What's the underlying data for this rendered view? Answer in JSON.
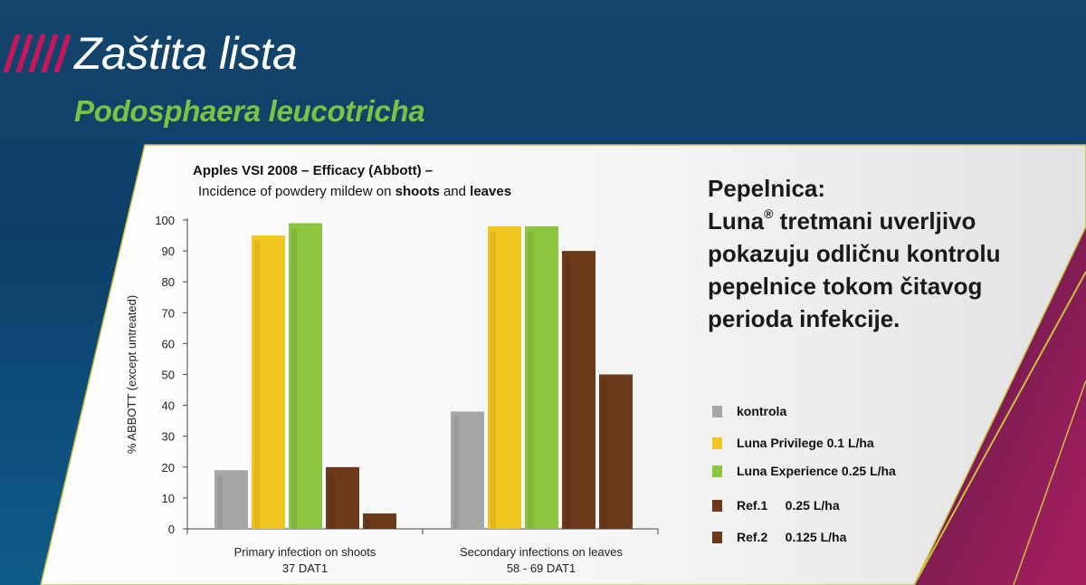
{
  "slide": {
    "title": "Zaštita lista",
    "subtitle": "Podosphaera leucotricha",
    "headline_line1": "Pepelnica:",
    "headline_brand": "Luna",
    "headline_reg": "®",
    "headline_rest1": " tretmani uverljivo",
    "headline_line3": "pokazuju odličnu kontrolu",
    "headline_line4": "pepelnice tokom čitavog",
    "headline_line5": "perioda infekcije."
  },
  "colors": {
    "accent_green": "#7dc242",
    "stripe": "#c4175c",
    "kontrola": "#a6a6a6",
    "luna_privilege": "#f2c61f",
    "luna_experience": "#8cc63f",
    "ref1": "#6b3a1a",
    "ref2": "#6b3a1a"
  },
  "chart_data": {
    "type": "bar",
    "title_line1": "Apples VSI 2008 – Efficacy (Abbott) –",
    "title_line2_pre": "Incidence of powdery mildew on ",
    "title_line2_b1": "shoots",
    "title_line2_mid": " and ",
    "title_line2_b2": "leaves",
    "ylabel": "% ABBOTT (except untreated)",
    "ylim": [
      0,
      100
    ],
    "yticks": [
      0,
      10,
      20,
      30,
      40,
      50,
      60,
      70,
      80,
      90,
      100
    ],
    "categories": [
      {
        "line1": "Primary infection on shoots",
        "line2": "37 DAT1"
      },
      {
        "line1": "Secondary infections on leaves",
        "line2": "58 - 69 DAT1"
      }
    ],
    "series": [
      {
        "name": "kontrola",
        "values": [
          19,
          38
        ]
      },
      {
        "name": "Luna Privilege 0.1 L/ha",
        "values": [
          95,
          98
        ]
      },
      {
        "name": "Luna Experience 0.25 L/ha",
        "values": [
          99,
          98
        ]
      },
      {
        "name": "Ref.1     0.25 L/ha",
        "values": [
          20,
          90
        ]
      },
      {
        "name": "Ref.2     0.125 L/ha",
        "values": [
          5,
          50
        ]
      }
    ],
    "legend_position": "right",
    "grid": false
  }
}
